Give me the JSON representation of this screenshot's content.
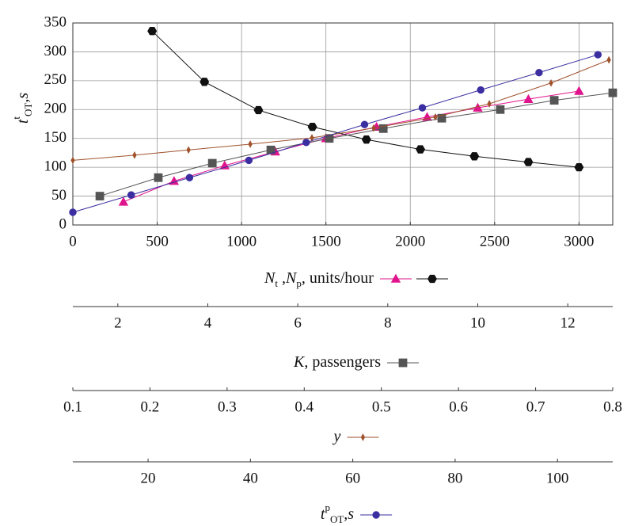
{
  "chart_data": {
    "type": "line",
    "grid": true,
    "ylabel": [
      {
        "text": "t",
        "style": "italic"
      },
      {
        "text": "t",
        "baseline": "sup"
      },
      {
        "text": "OT",
        "baseline": "sub"
      },
      {
        "text": ",s",
        "style": "italic"
      }
    ],
    "ylim": [
      0,
      350
    ],
    "yticks": [
      0,
      50,
      100,
      150,
      200,
      250,
      300,
      350
    ],
    "x_axes": [
      {
        "label": [
          {
            "text": "N",
            "style": "italic"
          },
          {
            "text": "t",
            "baseline": "sub"
          },
          {
            "text": " ,N",
            "style": "italic"
          },
          {
            "text": "p",
            "baseline": "sub"
          },
          {
            "text": ", units/hour"
          }
        ],
        "xlim": [
          0,
          3200
        ],
        "xticks": [
          0,
          500,
          1000,
          1500,
          2000,
          2500,
          3000
        ]
      },
      {
        "label": [
          {
            "text": "K",
            "style": "italic"
          },
          {
            "text": ", passengers"
          }
        ],
        "xlim": [
          1,
          13
        ],
        "xticks": [
          2,
          4,
          6,
          8,
          10,
          12
        ]
      },
      {
        "label": [
          {
            "text": "y",
            "style": "italic"
          }
        ],
        "xlim": [
          0.1,
          0.8
        ],
        "xticks": [
          0.1,
          0.2,
          0.3,
          0.4,
          0.5,
          0.6,
          0.7,
          0.8
        ]
      },
      {
        "label": [
          {
            "text": "t",
            "style": "italic"
          },
          {
            "text": "p",
            "baseline": "sup"
          },
          {
            "text": "OT",
            "baseline": "sub"
          },
          {
            "text": ",s",
            "style": "italic"
          }
        ],
        "xlim": [
          5.3,
          110.8
        ],
        "xticks": [
          20,
          40,
          60,
          80,
          100
        ]
      }
    ],
    "series": [
      {
        "axis": 0,
        "color": "#e0148c",
        "marker": "triangle",
        "x": [
          300,
          600,
          900,
          1200,
          1500,
          1800,
          2100,
          2400,
          2700,
          3000
        ],
        "values": [
          40,
          76,
          103,
          127,
          150,
          170,
          187,
          203,
          218,
          232
        ]
      },
      {
        "axis": 0,
        "color": "#111111",
        "marker": "hexagon",
        "x": [
          470,
          780,
          1100,
          1420,
          1740,
          2060,
          2380,
          2700,
          3000
        ],
        "values": [
          336,
          248,
          199,
          170,
          148,
          131,
          119,
          109,
          100
        ]
      },
      {
        "axis": 1,
        "color": "#555555",
        "marker": "square",
        "x": [
          1.6,
          2.9,
          4.1,
          5.4,
          6.7,
          7.9,
          9.2,
          10.5,
          11.7,
          13
        ],
        "values": [
          50,
          82,
          107,
          130,
          150,
          167,
          185,
          200,
          216,
          229
        ]
      },
      {
        "axis": 2,
        "color": "#a0522d",
        "marker": "diamond",
        "x": [
          0.1,
          0.18,
          0.25,
          0.33,
          0.41,
          0.49,
          0.57,
          0.64,
          0.72,
          0.795
        ],
        "values": [
          112,
          121,
          130,
          140,
          151,
          168,
          187,
          210,
          246,
          286
        ]
      },
      {
        "axis": 3,
        "color": "#3a2ea0",
        "marker": "circle",
        "x": [
          5.3,
          16.7,
          28.1,
          39.7,
          50.9,
          62.3,
          73.6,
          85,
          96.4,
          107.9
        ],
        "values": [
          22,
          52,
          82,
          112,
          143,
          174,
          203,
          234,
          264,
          295
        ]
      }
    ]
  }
}
